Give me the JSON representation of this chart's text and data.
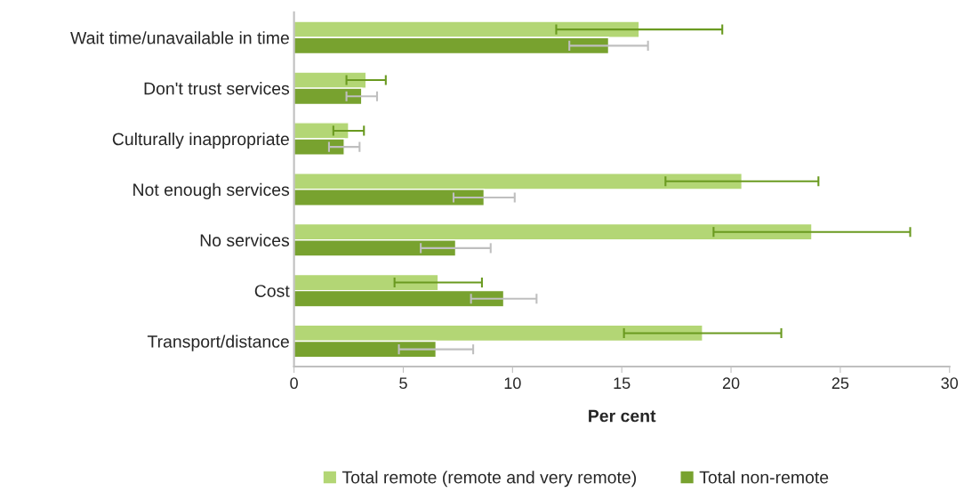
{
  "chart_data": {
    "type": "bar",
    "orientation": "horizontal",
    "xlabel": "Per cent",
    "categories": [
      "Wait time/unavailable in time",
      "Don't trust services",
      "Culturally inappropriate",
      "Not enough services",
      "No services",
      "Cost",
      "Transport/distance"
    ],
    "series": [
      {
        "name": "Total remote (remote and very remote)",
        "color": "#b3d675",
        "values": [
          15.8,
          3.3,
          2.5,
          20.5,
          23.7,
          6.6,
          18.7
        ],
        "errors": [
          3.8,
          0.9,
          0.7,
          3.5,
          4.5,
          2.0,
          3.6
        ]
      },
      {
        "name": "Total non-remote",
        "color": "#78a22f",
        "values": [
          14.4,
          3.1,
          2.3,
          8.7,
          7.4,
          9.6,
          6.5
        ],
        "errors": [
          1.8,
          0.7,
          0.7,
          1.4,
          1.6,
          1.5,
          1.7
        ]
      }
    ],
    "xlim": [
      0,
      30
    ],
    "xticks": [
      0,
      5,
      10,
      15,
      20,
      25,
      30
    ],
    "grid": false,
    "legend": "bottom"
  }
}
